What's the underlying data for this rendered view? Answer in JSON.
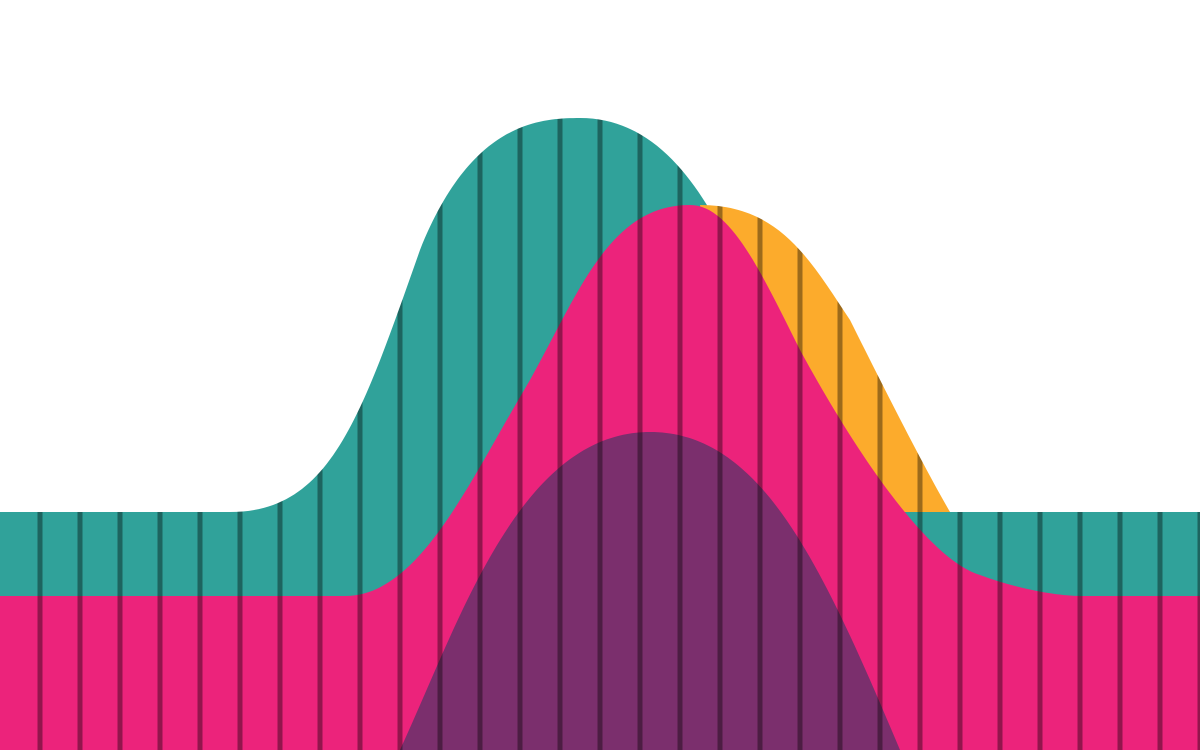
{
  "artwork": {
    "background": "#ffffff",
    "stripe_color": "#000000",
    "stripe_count": 30,
    "layers": [
      {
        "name": "teal-wave",
        "color": "#30A29A"
      },
      {
        "name": "orange-wave",
        "color": "#FCAB2C"
      },
      {
        "name": "pink-wave",
        "color": "#EC237B"
      },
      {
        "name": "purple-wave",
        "color": "#7B2F6D"
      }
    ]
  }
}
